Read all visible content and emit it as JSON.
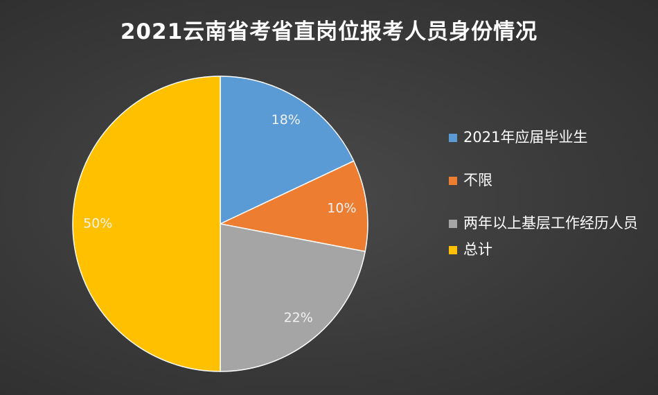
{
  "chart_data": {
    "type": "pie",
    "title": "2021云南省考省直岗位报考人员身份情况",
    "categories": [
      "2021年应届毕业生",
      "不限",
      "两年以上基层工作经历人员",
      "总计"
    ],
    "values": [
      18,
      10,
      22,
      50
    ],
    "value_labels": [
      "18%",
      "10%",
      "22%",
      "50%"
    ],
    "colors": [
      "#5b9bd5",
      "#ed7d31",
      "#a5a5a5",
      "#ffc000"
    ],
    "legend": "right"
  }
}
